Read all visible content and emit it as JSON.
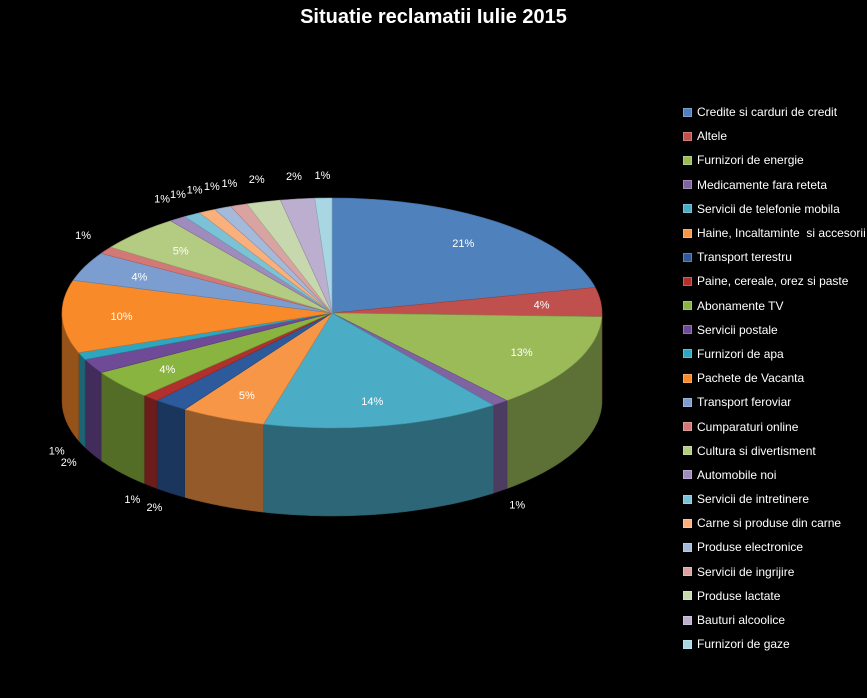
{
  "chart_data": {
    "type": "pie",
    "style": "3d-exploded-none",
    "title": "Situatie reclamatii Iulie 2015",
    "legend_position": "right",
    "unit": "%",
    "categories": [
      "Credite si carduri de credit",
      "Altele",
      "Furnizori de energie",
      "Medicamente fara reteta",
      "Servicii de telefonie mobila",
      "Haine, Incaltaminte  si accesorii",
      "Transport terestru",
      "Paine, cereale, orez si paste",
      "Abonamente TV",
      "Servicii postale",
      "Furnizori de apa",
      "Pachete de Vacanta",
      "Transport feroviar",
      "Cumparaturi online",
      "Cultura si divertisment",
      "Automobile noi",
      "Servicii de intretinere",
      "Carne si produse din carne",
      "Produse electronice",
      "Servicii de ingrijire",
      "Produse lactate",
      "Bauturi alcoolice",
      "Furnizori de gaze"
    ],
    "values": [
      21,
      4,
      13,
      1,
      14,
      5,
      2,
      1,
      4,
      2,
      1,
      10,
      4,
      1,
      5,
      1,
      1,
      1,
      1,
      1,
      2,
      2,
      1
    ],
    "labels": [
      "21%",
      "4%",
      "13%",
      "1%",
      "14%",
      "5%",
      "2%",
      "1%",
      "4%",
      "2%",
      "1%",
      "10%",
      "4%",
      "1%",
      "5%",
      "1%",
      "1%",
      "1%",
      "1%",
      "1%",
      "2%",
      "2%",
      "1%"
    ],
    "colors": [
      "#4F81BD",
      "#C0504D",
      "#9BBB59",
      "#8064A2",
      "#4BACC6",
      "#F79646",
      "#2C5A9A",
      "#B0302D",
      "#8AB440",
      "#6E4A97",
      "#2FA6C0",
      "#F98A2A",
      "#7B9DD0",
      "#D27877",
      "#B4CB82",
      "#A08CBC",
      "#7CC2D6",
      "#F9B07C",
      "#A5B9DB",
      "#D9A3A2",
      "#C8D8AE",
      "#BBAECF",
      "#A9D6E3"
    ]
  }
}
